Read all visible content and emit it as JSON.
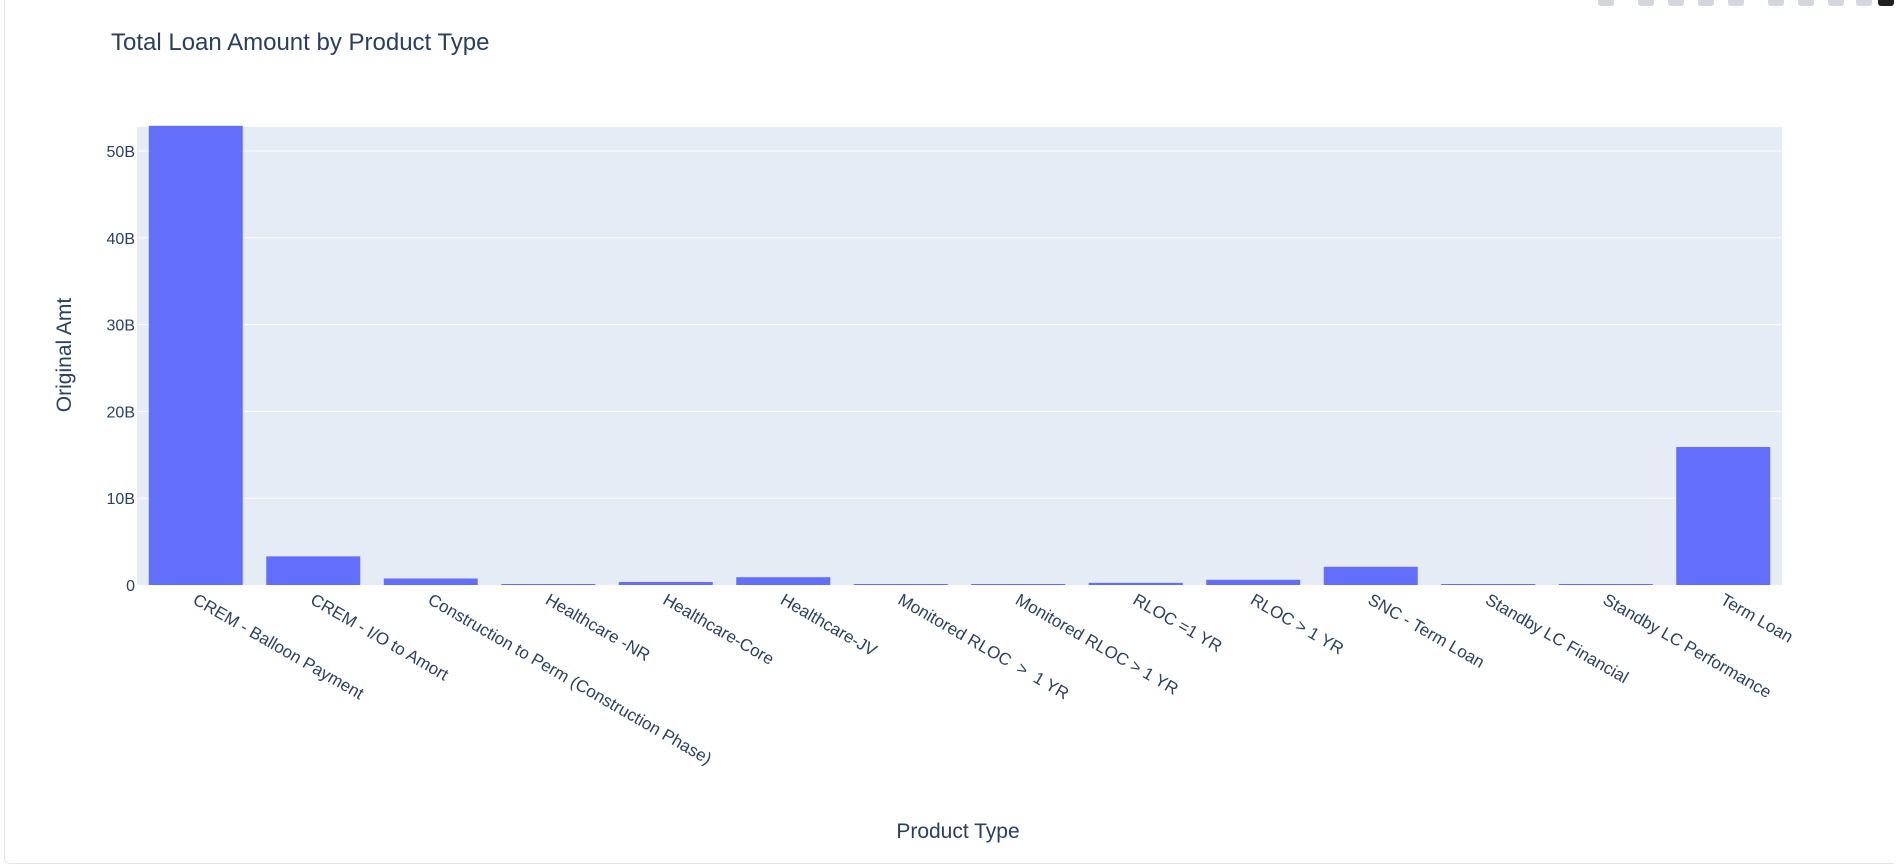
{
  "chart_data": {
    "type": "bar",
    "title": "Total Loan Amount by Product Type",
    "xlabel": "Product Type",
    "ylabel": "Original Amt",
    "categories": [
      "CREM - Balloon Payment",
      "CREM - I/O to Amort",
      "Construction to Perm (Construction Phase)",
      "Healthcare -NR",
      "Healthcare-Core",
      "Healthcare-JV",
      "Monitored RLOC  >  1 YR",
      "Monitored RLOC > 1 YR",
      "RLOC =1 YR",
      "RLOC > 1 YR",
      "SNC - Term Loan",
      "Standby LC Financial",
      "Standby LC Performance",
      "Term Loan"
    ],
    "values": [
      52900000000,
      3300000000,
      750000000,
      100000000,
      350000000,
      900000000,
      30000000,
      50000000,
      250000000,
      600000000,
      2100000000,
      40000000,
      60000000,
      15900000000
    ],
    "ylim": [
      0,
      55800000000
    ],
    "yticks": [
      0,
      10000000000,
      20000000000,
      30000000000,
      40000000000,
      50000000000
    ],
    "ytick_labels": [
      "0",
      "10B",
      "20B",
      "30B",
      "40B",
      "50B"
    ],
    "grid": true,
    "legend": "none",
    "colors": {
      "bar": "#636efa",
      "plot_bg": "#e5ecf6",
      "grid": "#ffffff",
      "text": "#2a3f5f"
    }
  }
}
